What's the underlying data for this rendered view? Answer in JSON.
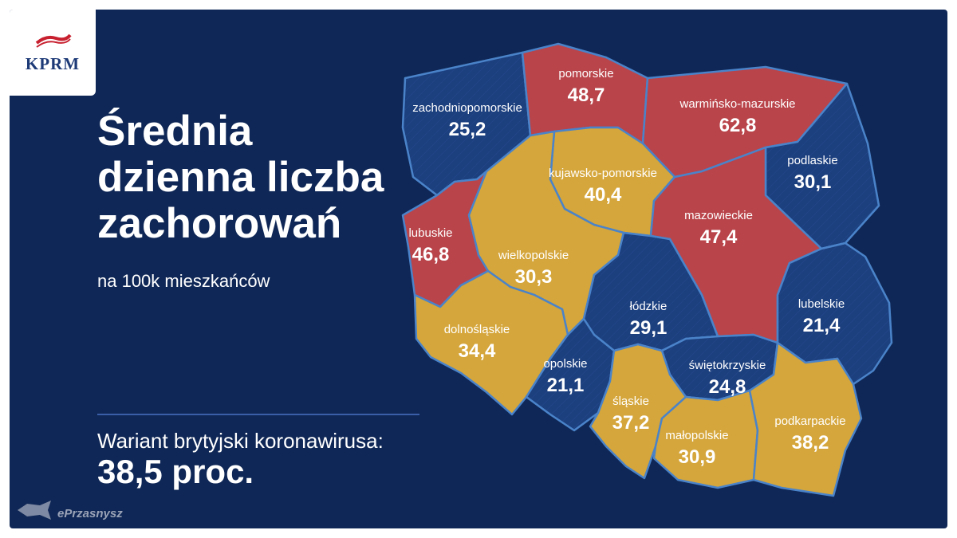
{
  "logo": {
    "text": "KPRM"
  },
  "title_lines": [
    "Średnia",
    "dzienna liczba",
    "zachorowań"
  ],
  "subtitle": "na 100k mieszkańców",
  "variant": {
    "label": "Wariant brytyjski koronawirusa:",
    "value": "38,5 proc."
  },
  "watermark": {
    "text": "ePrzasnysz"
  },
  "colors": {
    "background": "#0f2756",
    "high": "#b9444a",
    "medium": "#d5a63b",
    "low": "#1c3f7e",
    "border": "#4a83c9"
  },
  "regions": [
    {
      "name": "zachodniopomorskie",
      "value": "25,2",
      "level": "low"
    },
    {
      "name": "pomorskie",
      "value": "48,7",
      "level": "high"
    },
    {
      "name": "warmińsko-mazurskie",
      "value": "62,8",
      "level": "high"
    },
    {
      "name": "podlaskie",
      "value": "30,1",
      "level": "low"
    },
    {
      "name": "kujawsko-pomorskie",
      "value": "40,4",
      "level": "medium"
    },
    {
      "name": "mazowieckie",
      "value": "47,4",
      "level": "high"
    },
    {
      "name": "lubuskie",
      "value": "46,8",
      "level": "high"
    },
    {
      "name": "wielkopolskie",
      "value": "30,3",
      "level": "medium"
    },
    {
      "name": "łódzkie",
      "value": "29,1",
      "level": "low"
    },
    {
      "name": "lubelskie",
      "value": "21,4",
      "level": "low"
    },
    {
      "name": "dolnośląskie",
      "value": "34,4",
      "level": "medium"
    },
    {
      "name": "opolskie",
      "value": "21,1",
      "level": "low"
    },
    {
      "name": "świętokrzyskie",
      "value": "24,8",
      "level": "low"
    },
    {
      "name": "śląskie",
      "value": "37,2",
      "level": "medium"
    },
    {
      "name": "małopolskie",
      "value": "30,9",
      "level": "medium"
    },
    {
      "name": "podkarpackie",
      "value": "38,2",
      "level": "medium"
    }
  ]
}
